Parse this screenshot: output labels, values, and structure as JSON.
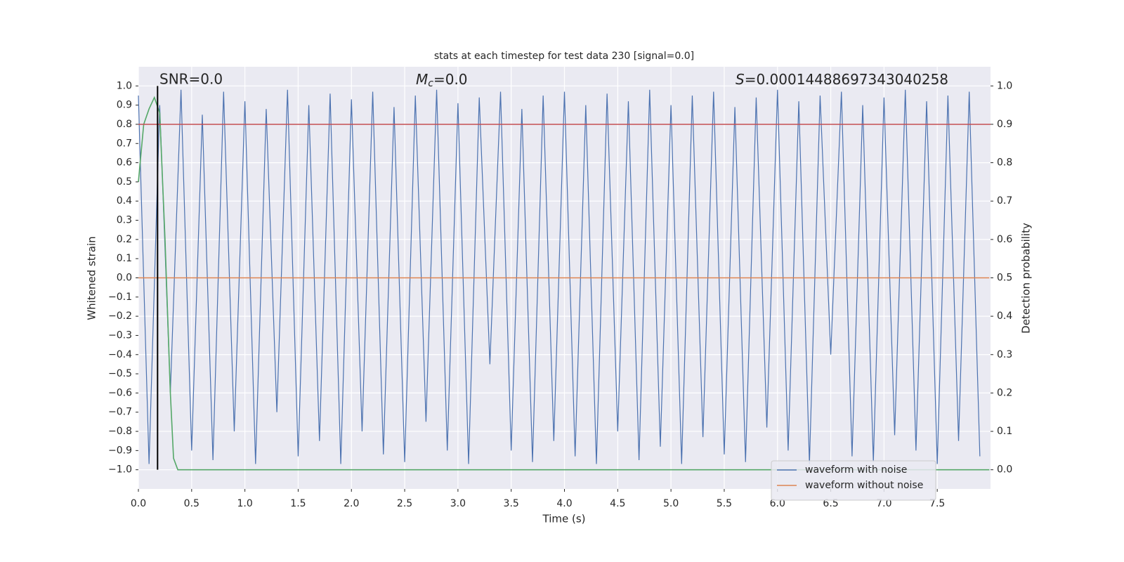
{
  "chart_data": {
    "type": "line",
    "title": "stats at each timestep for test data 230 [signal=0.0]",
    "x_label": "Time (s)",
    "y_label": "Whitened strain",
    "y2_label": "Detection probability",
    "annotations": [
      {
        "text": "SNR=0.0"
      },
      {
        "symbol": "M",
        "subscript": "c",
        "text": "=0.0"
      },
      {
        "symbol": "S",
        "text": "=0.00014488697343040258"
      }
    ],
    "xlim": [
      0,
      8.0
    ],
    "ylim": [
      -1.1,
      1.1
    ],
    "y2lim": [
      -0.05,
      1.05
    ],
    "xticks": [
      {
        "value": 0,
        "label": "0.0"
      },
      {
        "value": 0.5,
        "label": "0.5"
      },
      {
        "value": 1,
        "label": "1.0"
      },
      {
        "value": 1.5,
        "label": "1.5"
      },
      {
        "value": 2,
        "label": "2.0"
      },
      {
        "value": 2.5,
        "label": "2.5"
      },
      {
        "value": 3,
        "label": "3.0"
      },
      {
        "value": 3.5,
        "label": "3.5"
      },
      {
        "value": 4,
        "label": "4.0"
      },
      {
        "value": 4.5,
        "label": "4.5"
      },
      {
        "value": 5,
        "label": "5.0"
      },
      {
        "value": 5.5,
        "label": "5.5"
      },
      {
        "value": 6,
        "label": "6.0"
      },
      {
        "value": 6.5,
        "label": "6.5"
      },
      {
        "value": 7,
        "label": "7.0"
      },
      {
        "value": 7.5,
        "label": "7.5"
      }
    ],
    "yticks": [
      {
        "value": 1,
        "label": "1.0"
      },
      {
        "value": 0.9,
        "label": "0.9"
      },
      {
        "value": 0.8,
        "label": "0.8"
      },
      {
        "value": 0.7,
        "label": "0.7"
      },
      {
        "value": 0.6,
        "label": "0.6"
      },
      {
        "value": 0.5,
        "label": "0.5"
      },
      {
        "value": 0.4,
        "label": "0.4"
      },
      {
        "value": 0.3,
        "label": "0.3"
      },
      {
        "value": 0.2,
        "label": "0.2"
      },
      {
        "value": 0.1,
        "label": "0.1"
      },
      {
        "value": 0,
        "label": "0.0"
      },
      {
        "value": -0.1,
        "label": "−0.1"
      },
      {
        "value": -0.2,
        "label": "−0.2"
      },
      {
        "value": -0.3,
        "label": "−0.3"
      },
      {
        "value": -0.4,
        "label": "−0.4"
      },
      {
        "value": -0.5,
        "label": "−0.5"
      },
      {
        "value": -0.6,
        "label": "−0.6"
      },
      {
        "value": -0.7,
        "label": "−0.7"
      },
      {
        "value": -0.8,
        "label": "−0.8"
      },
      {
        "value": -0.9,
        "label": "−0.9"
      },
      {
        "value": -1,
        "label": "−1.0"
      }
    ],
    "y2ticks": [
      {
        "value": 1,
        "label": "1.0"
      },
      {
        "value": 0.9,
        "label": "0.9"
      },
      {
        "value": 0.8,
        "label": "0.8"
      },
      {
        "value": 0.7,
        "label": "0.7"
      },
      {
        "value": 0.6,
        "label": "0.6"
      },
      {
        "value": 0.5,
        "label": "0.5"
      },
      {
        "value": 0.4,
        "label": "0.4"
      },
      {
        "value": 0.3,
        "label": "0.3"
      },
      {
        "value": 0.2,
        "label": "0.2"
      },
      {
        "value": 0.1,
        "label": "0.1"
      },
      {
        "value": 0,
        "label": "0.0"
      }
    ],
    "grid": true,
    "legend": "lower right",
    "series": [
      {
        "name": "waveform with noise",
        "color": "#4c72b0",
        "x": [
          0.0,
          0.1,
          0.2,
          0.3,
          0.4,
          0.5,
          0.6,
          0.7,
          0.8,
          0.9,
          1.0,
          1.1,
          1.2,
          1.3,
          1.4,
          1.5,
          1.6,
          1.7,
          1.8,
          1.9,
          2.0,
          2.1,
          2.2,
          2.3,
          2.4,
          2.5,
          2.6,
          2.7,
          2.8,
          2.9,
          3.0,
          3.1,
          3.2,
          3.3,
          3.4,
          3.5,
          3.6,
          3.7,
          3.8,
          3.9,
          4.0,
          4.1,
          4.2,
          4.3,
          4.4,
          4.5,
          4.6,
          4.7,
          4.8,
          4.9,
          5.0,
          5.1,
          5.2,
          5.3,
          5.4,
          5.5,
          5.6,
          5.7,
          5.8,
          5.9,
          6.0,
          6.1,
          6.2,
          6.3,
          6.4,
          6.5,
          6.6,
          6.7,
          6.8,
          6.9,
          7.0,
          7.1,
          7.2,
          7.3,
          7.4,
          7.5,
          7.6,
          7.7,
          7.8,
          7.9
        ],
        "values": [
          0.95,
          -0.97,
          0.9,
          -0.6,
          0.98,
          -0.9,
          0.85,
          -0.95,
          0.97,
          -0.8,
          0.92,
          -0.97,
          0.88,
          -0.7,
          0.98,
          -0.93,
          0.9,
          -0.85,
          0.96,
          -0.97,
          0.93,
          -0.8,
          0.97,
          -0.92,
          0.89,
          -0.96,
          0.95,
          -0.75,
          0.98,
          -0.9,
          0.91,
          -0.97,
          0.94,
          -0.45,
          0.97,
          -0.9,
          0.88,
          -0.96,
          0.95,
          -0.85,
          0.97,
          -0.93,
          0.9,
          -0.97,
          0.96,
          -0.8,
          0.92,
          -0.95,
          0.98,
          -0.88,
          0.9,
          -0.97,
          0.95,
          -0.83,
          0.97,
          -0.92,
          0.89,
          -0.96,
          0.94,
          -0.78,
          0.98,
          -0.9,
          0.92,
          -0.97,
          0.95,
          -0.4,
          0.97,
          -0.93,
          0.9,
          -0.96,
          0.94,
          -0.82,
          0.98,
          -0.9,
          0.92,
          -0.97,
          0.95,
          -0.85,
          0.97,
          -0.93
        ]
      },
      {
        "name": "waveform without noise",
        "color": "#dd8452",
        "x": [
          0,
          7.99
        ],
        "values": [
          0,
          0
        ]
      },
      {
        "color": "#55a868",
        "axis": "y2",
        "x": [
          0,
          0.05,
          0.1,
          0.15,
          0.2,
          0.25,
          0.3,
          0.33,
          0.37,
          7.99
        ],
        "values": [
          0.75,
          0.9,
          0.94,
          0.97,
          0.93,
          0.6,
          0.2,
          0.03,
          0,
          0
        ]
      }
    ],
    "hlines": [
      {
        "value": 0.9,
        "axis": "y2",
        "color": "#c44e52"
      }
    ],
    "vlines": [
      {
        "value": 0.18,
        "color": "#000000"
      }
    ]
  }
}
